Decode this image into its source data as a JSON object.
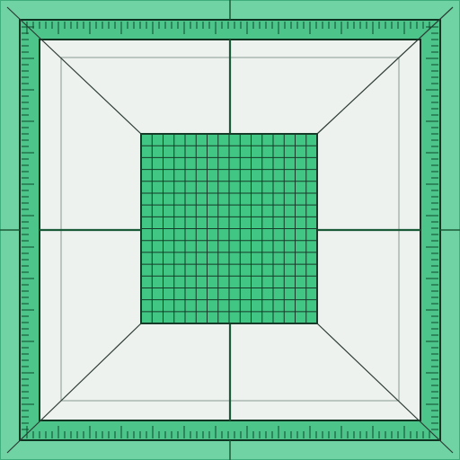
{
  "colors": {
    "outer_frame": "#6fd3a4",
    "outer_frame_dark": "#3fae7c",
    "ruler_band": "#4cc48a",
    "ruler_tick": "#114a2c",
    "inner_panel": "#eef2ef",
    "center_grid_fill": "#41c684",
    "grid_line": "#163b28",
    "diagonal_line": "#2d3b34",
    "axis_line": "#1a5a36",
    "border_line": "#0e3320"
  },
  "components": {
    "outer_frame": "outer-frame",
    "inner_panel": "inner-panel",
    "center_grid": "center-grid",
    "diagonals": "diagonal-lines",
    "axes": "center-axis-lines"
  },
  "grid": {
    "rows": 16,
    "cols": 16
  }
}
